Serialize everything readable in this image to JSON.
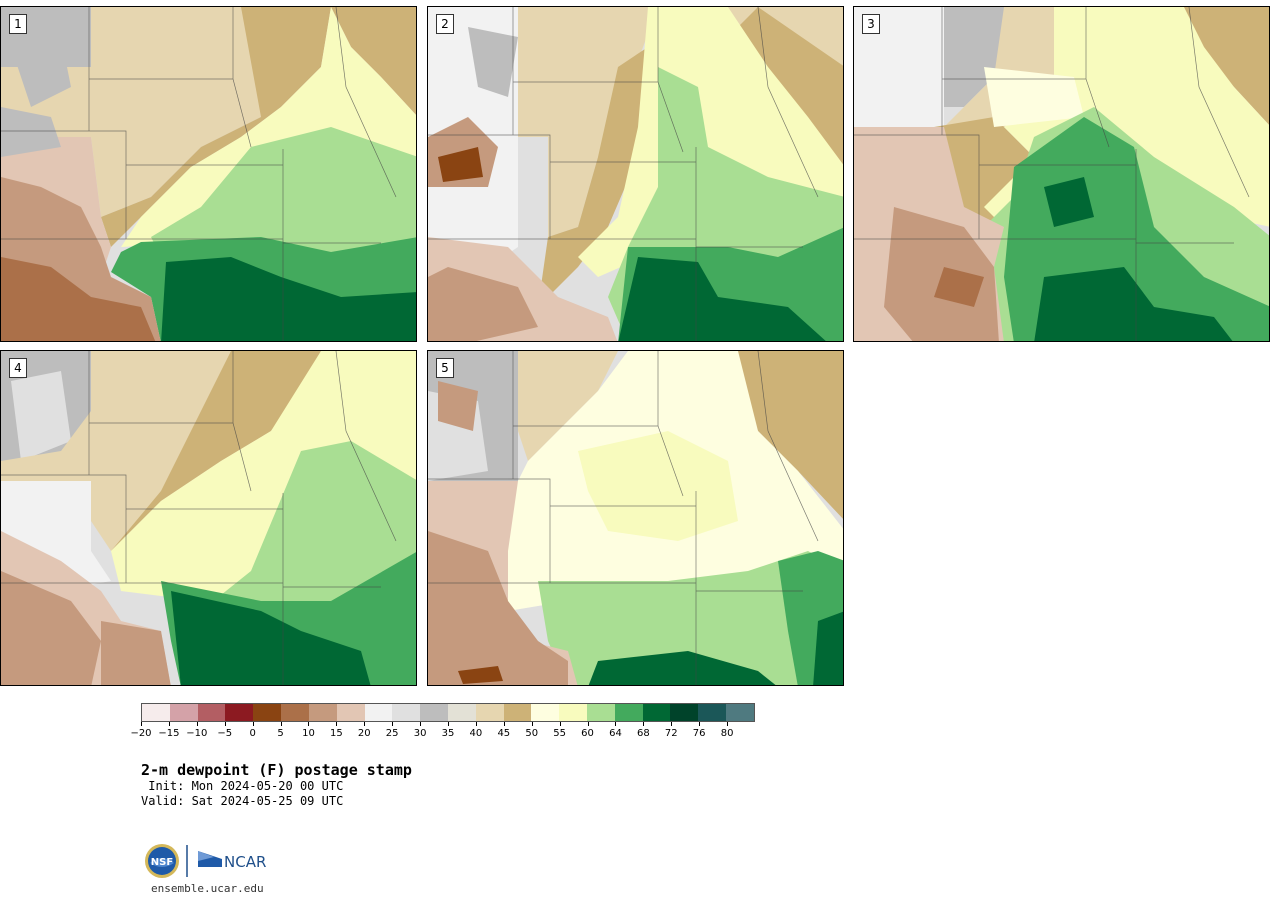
{
  "panels": [
    {
      "label": "1"
    },
    {
      "label": "2"
    },
    {
      "label": "3"
    },
    {
      "label": "4"
    },
    {
      "label": "5"
    }
  ],
  "colorbar": {
    "ticks": [
      "−20",
      "−15",
      "−10",
      "−5",
      "0",
      "5",
      "10",
      "15",
      "20",
      "25",
      "30",
      "35",
      "40",
      "45",
      "50",
      "55",
      "60",
      "64",
      "68",
      "72",
      "76",
      "80"
    ],
    "colors": [
      "#f6ecec",
      "#d4a2a8",
      "#b35e63",
      "#8c1a21",
      "#8a4412",
      "#ab7049",
      "#c59a7e",
      "#e2c6b4",
      "#f2f2f2",
      "#e0e0e0",
      "#bdbdbd",
      "#e3e1d6",
      "#e6d6b0",
      "#cdb277",
      "#fefee0",
      "#f8fbbe",
      "#a9de93",
      "#43aa5d",
      "#006834",
      "#00432a",
      "#1b5758",
      "#4f7a80"
    ]
  },
  "title": "2-m dewpoint (F) postage stamp",
  "init": " Init: Mon 2024-05-20 00 UTC",
  "valid": "Valid: Sat 2024-05-25 09 UTC",
  "logos": {
    "nsf": "NSF",
    "ncar": "NCAR"
  },
  "url": "ensemble.ucar.edu"
}
